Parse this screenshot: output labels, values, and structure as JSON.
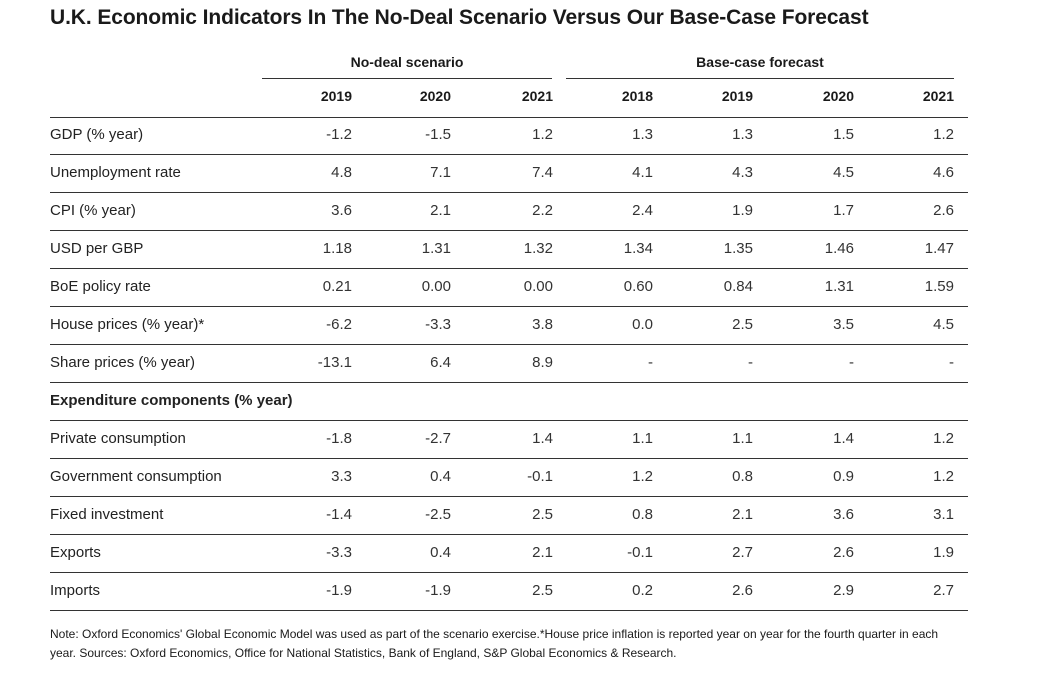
{
  "title": "U.K. Economic Indicators In The No-Deal Scenario Versus Our Base-Case Forecast",
  "chart_data": {
    "type": "table",
    "title": "U.K. Economic Indicators In The No-Deal Scenario Versus Our Base-Case Forecast",
    "groups": [
      {
        "name": "No-deal scenario",
        "years": [
          "2019",
          "2020",
          "2021"
        ]
      },
      {
        "name": "Base-case forecast",
        "years": [
          "2018",
          "2019",
          "2020",
          "2021"
        ]
      }
    ],
    "rows": [
      {
        "label": "GDP (% year)",
        "values": [
          "-1.2",
          "-1.5",
          "1.2",
          "1.3",
          "1.3",
          "1.5",
          "1.2"
        ]
      },
      {
        "label": "Unemployment rate",
        "values": [
          "4.8",
          "7.1",
          "7.4",
          "4.1",
          "4.3",
          "4.5",
          "4.6"
        ]
      },
      {
        "label": "CPI (% year)",
        "values": [
          "3.6",
          "2.1",
          "2.2",
          "2.4",
          "1.9",
          "1.7",
          "2.6"
        ]
      },
      {
        "label": "USD per GBP",
        "values": [
          "1.18",
          "1.31",
          "1.32",
          "1.34",
          "1.35",
          "1.46",
          "1.47"
        ]
      },
      {
        "label": "BoE policy rate",
        "values": [
          "0.21",
          "0.00",
          "0.00",
          "0.60",
          "0.84",
          "1.31",
          "1.59"
        ]
      },
      {
        "label": "House prices (% year)*",
        "values": [
          "-6.2",
          "-3.3",
          "3.8",
          "0.0",
          "2.5",
          "3.5",
          "4.5"
        ]
      },
      {
        "label": "Share prices (% year)",
        "values": [
          "-13.1",
          "6.4",
          "8.9",
          "-",
          "-",
          "-",
          "-"
        ]
      },
      {
        "label": "Expenditure components (% year)",
        "section": true,
        "values": []
      },
      {
        "label": "Private consumption",
        "values": [
          "-1.8",
          "-2.7",
          "1.4",
          "1.1",
          "1.1",
          "1.4",
          "1.2"
        ]
      },
      {
        "label": "Government consumption",
        "values": [
          "3.3",
          "0.4",
          "-0.1",
          "1.2",
          "0.8",
          "0.9",
          "1.2"
        ]
      },
      {
        "label": "Fixed investment",
        "values": [
          "-1.4",
          "-2.5",
          "2.5",
          "0.8",
          "2.1",
          "3.6",
          "3.1"
        ]
      },
      {
        "label": "Exports",
        "values": [
          "-3.3",
          "0.4",
          "2.1",
          "-0.1",
          "2.7",
          "2.6",
          "1.9"
        ]
      },
      {
        "label": "Imports",
        "values": [
          "-1.9",
          "-1.9",
          "2.5",
          "0.2",
          "2.6",
          "2.9",
          "2.7"
        ]
      }
    ]
  },
  "note": "Note: Oxford Economics' Global Economic Model was used as part of the scenario exercise.*House price inflation is reported year on year for the fourth quarter in each year. Sources: Oxford Economics, Office for National Statistics, Bank of England, S&P Global Economics & Research."
}
